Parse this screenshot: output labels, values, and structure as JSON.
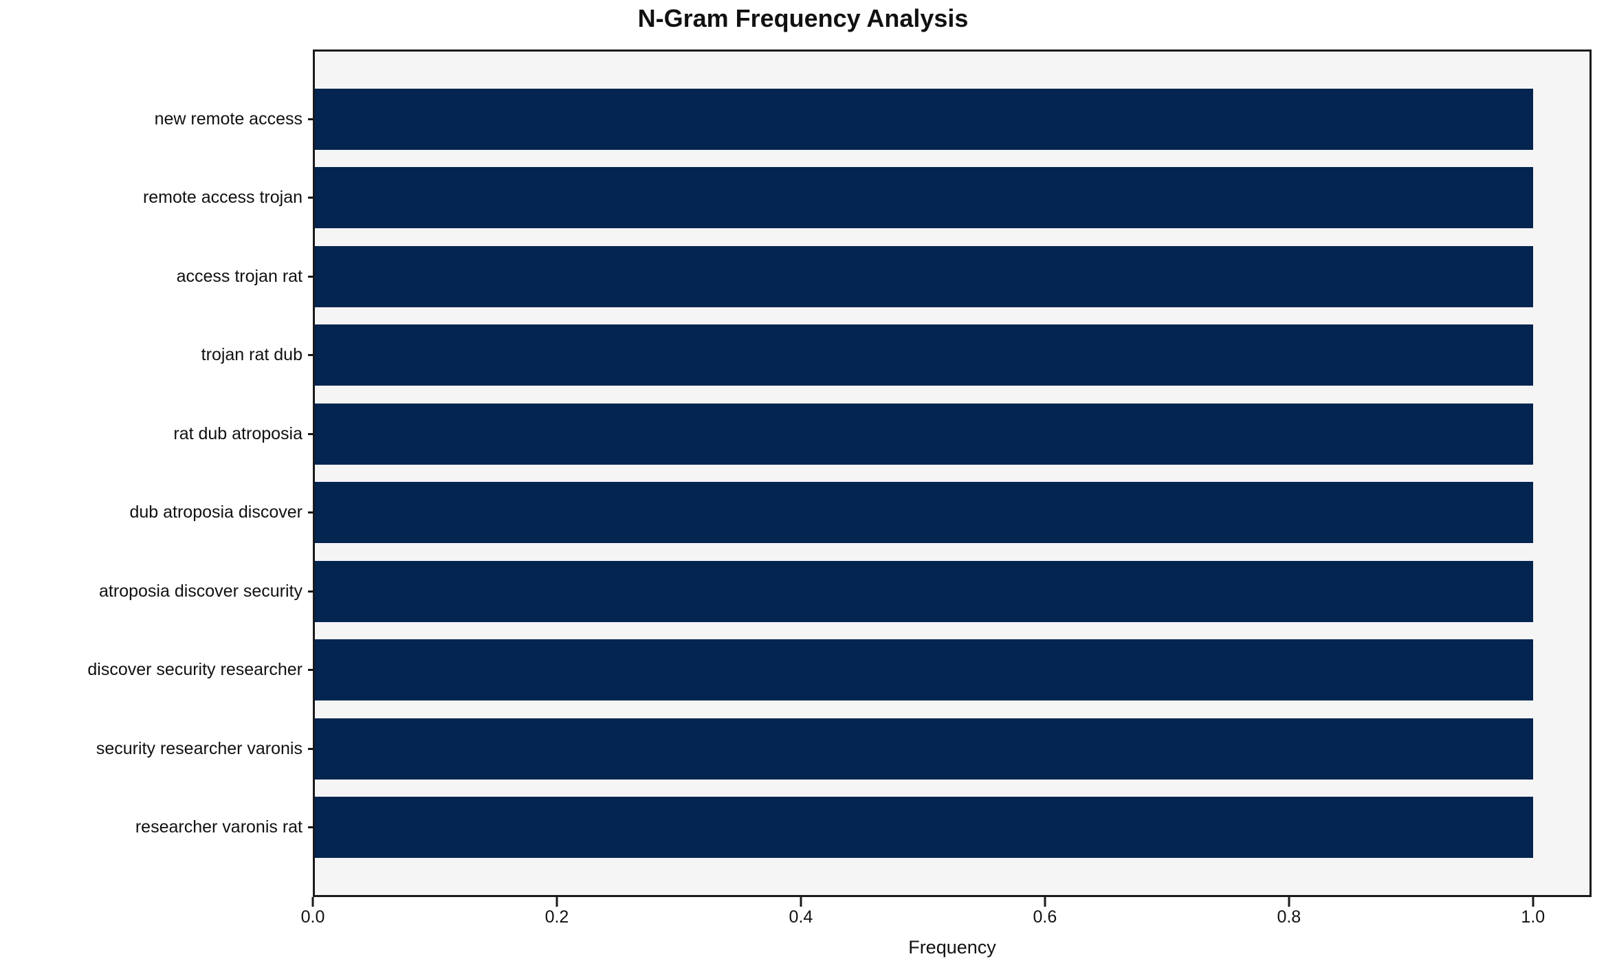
{
  "chart_data": {
    "type": "bar",
    "orientation": "horizontal",
    "title": "N-Gram Frequency Analysis",
    "xlabel": "Frequency",
    "categories": [
      "new remote access",
      "remote access trojan",
      "access trojan rat",
      "trojan rat dub",
      "rat dub atroposia",
      "dub atroposia discover",
      "atroposia discover security",
      "discover security researcher",
      "security researcher varonis",
      "researcher varonis rat"
    ],
    "values": [
      1.0,
      1.0,
      1.0,
      1.0,
      1.0,
      1.0,
      1.0,
      1.0,
      1.0,
      1.0
    ],
    "xlim": [
      0,
      1.048
    ],
    "x_ticks": [
      0.0,
      0.2,
      0.4,
      0.6,
      0.8,
      1.0
    ],
    "x_tick_labels": [
      "0.0",
      "0.2",
      "0.4",
      "0.6",
      "0.8",
      "1.0"
    ],
    "grid": false,
    "legend_position": "none",
    "colors": {
      "bar": "#03254f",
      "plot_background": "#f5f5f6",
      "figure_background": "#ffffff",
      "spine": "#1a1a1a",
      "text": "#111111"
    }
  }
}
